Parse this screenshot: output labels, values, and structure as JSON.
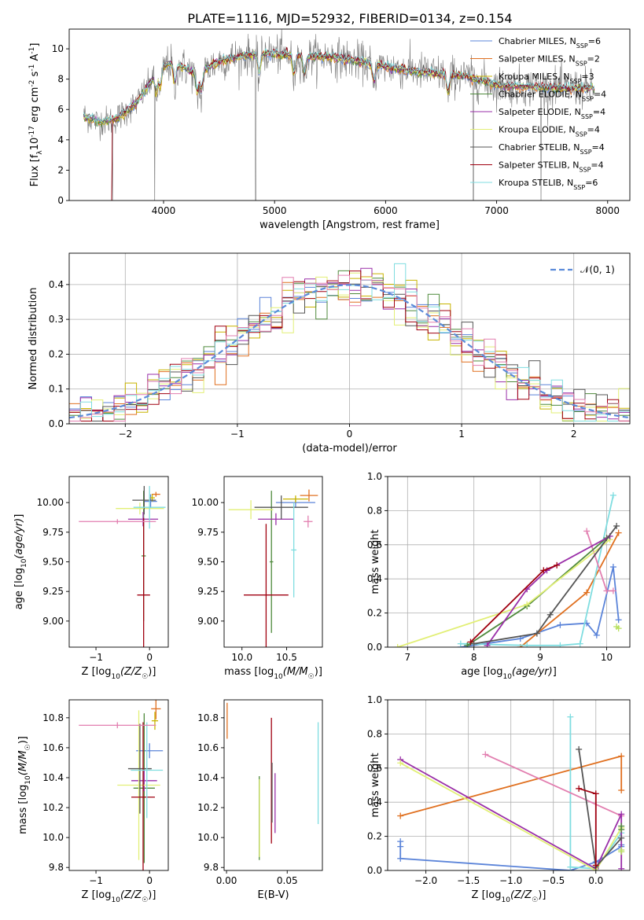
{
  "figure": {
    "title": "PLATE=1116, MJD=52932, FIBERID=0134, z=0.154"
  },
  "colors": {
    "Chabrier MILES": "#5b84d9",
    "Salpeter MILES": "#e07020",
    "Kroupa MILES": "#c8b400",
    "Chabrier ELODIE": "#4f8a3c",
    "Salpeter ELODIE": "#9a2fa8",
    "Kroupa ELODIE": "#e2ef76",
    "Chabrier STELIB": "#555555",
    "Salpeter STELIB": "#a00010",
    "Kroupa STELIB": "#7fdde0",
    "Pink": "#e27fb0",
    "Gaussian": "#5b8bd9",
    "Spectrum": "#7a7a7a",
    "Greenyellow": "#b8e060"
  },
  "chart_data": [
    {
      "id": "spectrum",
      "type": "line",
      "xlabel": "wavelength [Angstrom, rest frame]",
      "ylabel": "Flux [f_λ10^-17 erg cm^-2 s^-1 A^-1]",
      "xlim": [
        3150,
        8200
      ],
      "ylim": [
        0,
        11.3
      ],
      "xticks": [
        4000,
        5000,
        6000,
        7000,
        8000
      ],
      "yticks": [
        0,
        2,
        4,
        6,
        8,
        10
      ],
      "grid": false,
      "legend_position": "right",
      "legend": [
        {
          "label": "Chabrier MILES, N",
          "sub": "SSP",
          "suffix": "=6"
        },
        {
          "label": "Salpeter MILES, N",
          "sub": "SSP",
          "suffix": "=2"
        },
        {
          "label": "Kroupa MILES, N",
          "sub": "SSP",
          "suffix": "=3"
        },
        {
          "label": "Chabrier ELODIE, N",
          "sub": "SSP",
          "suffix": "=4"
        },
        {
          "label": "Salpeter ELODIE, N",
          "sub": "SSP",
          "suffix": "=4"
        },
        {
          "label": "Kroupa ELODIE, N",
          "sub": "SSP",
          "suffix": "=4"
        },
        {
          "label": "Chabrier STELIB, N",
          "sub": "SSP",
          "suffix": "=4"
        },
        {
          "label": "Salpeter STELIB, N",
          "sub": "SSP",
          "suffix": "=4"
        },
        {
          "label": "Kroupa STELIB, N",
          "sub": "SSP",
          "suffix": "=6"
        }
      ],
      "continuum": {
        "x": [
          3280,
          3400,
          3550,
          3650,
          3750,
          3850,
          3950,
          4050,
          4150,
          4300,
          4500,
          4700,
          4900,
          5100,
          5300,
          5500,
          5800,
          6100,
          6400,
          6700,
          7000,
          7300,
          7600,
          7900
        ],
        "y": [
          5.6,
          5.2,
          5.3,
          5.8,
          6.4,
          7.4,
          8.6,
          9.0,
          8.9,
          8.3,
          9.2,
          9.5,
          9.7,
          9.6,
          9.5,
          9.5,
          9.1,
          8.7,
          8.4,
          8.2,
          7.6,
          7.5,
          7.4,
          7.4
        ]
      },
      "absorption_lines": [
        3934,
        3969,
        4102,
        4304,
        4340,
        4861,
        5175,
        5270,
        5893,
        6563
      ],
      "spikes": [
        3540,
        3920,
        4830,
        6790,
        7400
      ]
    },
    {
      "id": "residuals",
      "type": "histogram",
      "xlabel": "(data-model)/error",
      "ylabel": "Normed distribution",
      "xlim": [
        -2.5,
        2.5
      ],
      "ylim": [
        0,
        0.49
      ],
      "xticks": [
        -2,
        -1,
        0,
        1,
        2
      ],
      "yticks": [
        0.0,
        0.1,
        0.2,
        0.3,
        0.4
      ],
      "grid": true,
      "legend_position": "upper right",
      "legend": [
        "𝒩(0, 1)"
      ],
      "bin_width": 0.1
    },
    {
      "id": "age-vs-Z",
      "type": "errorbar",
      "xlabel": "Z [log10(Z/Z☉)]",
      "ylabel": "age  [log10(age/yr)]",
      "xlim": [
        -1.5,
        0.35
      ],
      "ylim": [
        8.78,
        10.22
      ],
      "xticks": [
        -1,
        0
      ],
      "yticks": [
        9.0,
        9.25,
        9.5,
        9.75,
        10.0
      ],
      "points": [
        {
          "series": "Chabrier MILES",
          "x": 0.02,
          "xerr": 0.12,
          "y": 10.01,
          "yerr": 0.06
        },
        {
          "series": "Salpeter MILES",
          "x": 0.12,
          "xerr": 0.08,
          "y": 10.07,
          "yerr": 0.02
        },
        {
          "series": "Kroupa MILES",
          "x": 0.05,
          "xerr": 0.05,
          "y": 10.04,
          "yerr": 0.03
        },
        {
          "series": "Chabrier ELODIE",
          "x": -0.11,
          "xerr": 0.04,
          "y": 9.55,
          "yerr": 0.55
        },
        {
          "series": "Salpeter ELODIE",
          "x": -0.12,
          "xerr": 0.28,
          "y": 9.86,
          "yerr": 0.06
        },
        {
          "series": "Kroupa ELODIE",
          "x": -0.18,
          "xerr": 0.45,
          "y": 9.95,
          "yerr": 0.05
        },
        {
          "series": "Chabrier STELIB",
          "x": -0.1,
          "xerr": 0.22,
          "y": 10.02,
          "yerr": 0.12
        },
        {
          "series": "Salpeter STELIB",
          "x": -0.11,
          "xerr": 0.12,
          "y": 9.22,
          "yerr": 0.65
        },
        {
          "series": "Kroupa STELIB",
          "x": 0.0,
          "xerr": 0.3,
          "y": 9.96,
          "yerr": 0.18
        },
        {
          "series": "Pink",
          "x": -0.6,
          "xerr": 0.72,
          "y": 9.84,
          "yerr": 0.02
        }
      ]
    },
    {
      "id": "age-vs-mass",
      "type": "errorbar",
      "xlabel": "mass [log10(M/M☉)]",
      "ylabel": "",
      "xlim": [
        9.8,
        10.9
      ],
      "ylim": [
        8.78,
        10.22
      ],
      "xticks": [
        10.0,
        10.5
      ],
      "yticks": [
        9.0,
        9.25,
        9.5,
        9.75,
        10.0
      ],
      "points": [
        {
          "series": "Chabrier MILES",
          "x": 10.6,
          "xerr": 0.22,
          "y": 10.0,
          "yerr": 0.04
        },
        {
          "series": "Salpeter MILES",
          "x": 10.75,
          "xerr": 0.1,
          "y": 10.06,
          "yerr": 0.05
        },
        {
          "series": "Kroupa MILES",
          "x": 10.6,
          "xerr": 0.14,
          "y": 10.03,
          "yerr": 0.03
        },
        {
          "series": "Chabrier ELODIE",
          "x": 10.33,
          "xerr": 0.02,
          "y": 9.5,
          "yerr": 0.6
        },
        {
          "series": "Salpeter ELODIE",
          "x": 10.38,
          "xerr": 0.2,
          "y": 9.86,
          "yerr": 0.05
        },
        {
          "series": "Kroupa ELODIE",
          "x": 10.1,
          "xerr": 0.25,
          "y": 9.94,
          "yerr": 0.08
        },
        {
          "series": "Chabrier STELIB",
          "x": 10.44,
          "xerr": 0.3,
          "y": 9.96,
          "yerr": 0.1
        },
        {
          "series": "Salpeter STELIB",
          "x": 10.27,
          "xerr": 0.25,
          "y": 9.22,
          "yerr": 0.6
        },
        {
          "series": "Kroupa STELIB",
          "x": 10.58,
          "xerr": 0.03,
          "y": 9.6,
          "yerr": 0.4
        },
        {
          "series": "Pink",
          "x": 10.74,
          "xerr": 0.05,
          "y": 9.84,
          "yerr": 0.05
        }
      ]
    },
    {
      "id": "weight-vs-age",
      "type": "line",
      "xlabel": "age  [log10(age/yr)]",
      "ylabel": "mass weight",
      "xlim": [
        6.7,
        10.35
      ],
      "ylim": [
        0,
        1.0
      ],
      "xticks": [
        7,
        8,
        9,
        10
      ],
      "yticks": [
        0.0,
        0.2,
        0.4,
        0.6,
        0.8,
        1.0
      ],
      "grid": true,
      "series": [
        {
          "series": "Chabrier MILES",
          "x": [
            7.8,
            8.7,
            9.3,
            9.7,
            9.85,
            10.1,
            10.18
          ],
          "y": [
            0.0,
            0.05,
            0.13,
            0.14,
            0.07,
            0.47,
            0.16
          ]
        },
        {
          "series": "Salpeter MILES",
          "x": [
            8.7,
            9.7,
            10.18
          ],
          "y": [
            0.0,
            0.32,
            0.67
          ]
        },
        {
          "series": "Kroupa STELIB",
          "x": [
            7.8,
            8.8,
            9.3,
            9.6,
            10.1
          ],
          "y": [
            0.02,
            0.01,
            0.01,
            0.02,
            0.89
          ]
        },
        {
          "series": "Pink",
          "x": [
            9.7,
            10.0,
            10.1
          ],
          "y": [
            0.68,
            0.33,
            0.33
          ]
        },
        {
          "series": "Chabrier ELODIE",
          "x": [
            7.9,
            8.8,
            10.0
          ],
          "y": [
            0.01,
            0.24,
            0.64
          ]
        },
        {
          "series": "Kroupa ELODIE",
          "x": [
            6.85,
            8.8,
            10.05
          ],
          "y": [
            0.0,
            0.25,
            0.63
          ]
        },
        {
          "series": "Salpeter ELODIE",
          "x": [
            8.2,
            8.8,
            9.1,
            10.05
          ],
          "y": [
            0.01,
            0.34,
            0.45,
            0.65
          ]
        },
        {
          "series": "Salpeter STELIB",
          "x": [
            7.95,
            9.05,
            9.25
          ],
          "y": [
            0.03,
            0.45,
            0.48
          ]
        },
        {
          "series": "Chabrier STELIB",
          "x": [
            8.0,
            8.95,
            9.15,
            10.15
          ],
          "y": [
            0.02,
            0.08,
            0.19,
            0.71
          ]
        },
        {
          "series": "Greenyellow",
          "x": [
            10.15,
            10.18
          ],
          "y": [
            0.12,
            0.11
          ]
        }
      ]
    },
    {
      "id": "mass-vs-Z",
      "type": "errorbar",
      "xlabel": "Z [log10(Z/Z☉)]",
      "ylabel": "mass [log10(M/M☉)]",
      "xlim": [
        -1.5,
        0.35
      ],
      "ylim": [
        9.78,
        10.92
      ],
      "xticks": [
        -1,
        0
      ],
      "yticks": [
        9.8,
        10.0,
        10.2,
        10.4,
        10.6,
        10.8
      ],
      "points": [
        {
          "series": "Chabrier MILES",
          "x": 0.0,
          "xerr": 0.25,
          "y": 10.58,
          "yerr": 0.05
        },
        {
          "series": "Salpeter MILES",
          "x": 0.12,
          "xerr": 0.09,
          "y": 10.86,
          "yerr": 0.07
        },
        {
          "series": "Kroupa MILES",
          "x": 0.1,
          "xerr": 0.06,
          "y": 10.78,
          "yerr": 0.06
        },
        {
          "series": "Chabrier ELODIE",
          "x": -0.1,
          "xerr": 0.2,
          "y": 10.33,
          "yerr": 0.5
        },
        {
          "series": "Salpeter ELODIE",
          "x": -0.1,
          "xerr": 0.24,
          "y": 10.38,
          "yerr": 0.07
        },
        {
          "series": "Kroupa ELODIE",
          "x": -0.2,
          "xerr": 0.4,
          "y": 10.35,
          "yerr": 0.5
        },
        {
          "series": "Chabrier STELIB",
          "x": -0.18,
          "xerr": 0.22,
          "y": 10.46,
          "yerr": 0.3
        },
        {
          "series": "Salpeter STELIB",
          "x": -0.12,
          "xerr": 0.22,
          "y": 10.27,
          "yerr": 0.5
        },
        {
          "series": "Kroupa STELIB",
          "x": -0.05,
          "xerr": 0.3,
          "y": 10.45,
          "yerr": 0.32
        },
        {
          "series": "Pink",
          "x": -0.6,
          "xerr": 0.72,
          "y": 10.75,
          "yerr": 0.02
        }
      ]
    },
    {
      "id": "mass-vs-ebv",
      "type": "errorbar",
      "xlabel": "E(B-V)",
      "ylabel": "",
      "xlim": [
        -0.002,
        0.079
      ],
      "ylim": [
        9.78,
        10.92
      ],
      "xticks": [
        0.0,
        0.05
      ],
      "yticks": [
        9.8,
        10.0,
        10.2,
        10.4,
        10.6,
        10.8
      ],
      "points": [
        {
          "series": "Salpeter MILES",
          "x": 0.0005,
          "xerr": 0.0,
          "y": 10.78,
          "yerr": 0.12
        },
        {
          "series": "Chabrier ELODIE",
          "x": 0.027,
          "xerr": 0.0,
          "y": 10.13,
          "yerr": 0.28
        },
        {
          "series": "Kroupa ELODIE",
          "x": 0.0272,
          "xerr": 0.0,
          "y": 10.13,
          "yerr": 0.26
        },
        {
          "series": "Salpeter STELIB",
          "x": 0.037,
          "xerr": 0.0,
          "y": 10.38,
          "yerr": 0.42
        },
        {
          "series": "Chabrier STELIB",
          "x": 0.0375,
          "xerr": 0.0,
          "y": 10.3,
          "yerr": 0.2
        },
        {
          "series": "Salpeter ELODIE",
          "x": 0.04,
          "xerr": 0.0,
          "y": 10.23,
          "yerr": 0.2
        },
        {
          "series": "Kroupa STELIB",
          "x": 0.0755,
          "xerr": 0.0,
          "y": 10.43,
          "yerr": 0.34
        }
      ]
    },
    {
      "id": "weight-vs-Z",
      "type": "line",
      "xlabel": "Z [log10(Z/Z☉)]",
      "ylabel": "mass weight",
      "xlim": [
        -2.45,
        0.4
      ],
      "ylim": [
        0,
        1.0
      ],
      "xticks": [
        -2.0,
        -1.5,
        -1.0,
        -0.5,
        0.0
      ],
      "yticks": [
        0.0,
        0.2,
        0.4,
        0.6,
        0.8,
        1.0
      ],
      "grid": true,
      "series": [
        {
          "series": "Chabrier MILES",
          "x": [
            -2.3,
            -2.3,
            -2.3,
            -0.3,
            0.0,
            0.3,
            0.3
          ],
          "y": [
            0.17,
            0.14,
            0.07,
            0.0,
            0.05,
            0.14,
            0.15
          ]
        },
        {
          "series": "Salpeter MILES",
          "x": [
            -2.3,
            0.3,
            0.3
          ],
          "y": [
            0.32,
            0.67,
            0.47
          ]
        },
        {
          "series": "Kroupa STELIB",
          "x": [
            -0.3,
            -0.3,
            0.0,
            0.3
          ],
          "y": [
            0.9,
            0.02,
            0.01,
            0.22
          ]
        },
        {
          "series": "Pink",
          "x": [
            -1.3,
            0.3
          ],
          "y": [
            0.68,
            0.32
          ]
        },
        {
          "series": "Salpeter ELODIE",
          "x": [
            -2.3,
            0.0,
            0.3,
            0.3
          ],
          "y": [
            0.65,
            0.01,
            0.33,
            0.01
          ]
        },
        {
          "series": "Kroupa ELODIE",
          "x": [
            -2.3,
            0.0,
            0.3
          ],
          "y": [
            0.63,
            0.0,
            0.25
          ]
        },
        {
          "series": "Chabrier STELIB",
          "x": [
            -0.2,
            0.0,
            0.3
          ],
          "y": [
            0.71,
            0.02,
            0.19
          ]
        },
        {
          "series": "Salpeter STELIB",
          "x": [
            -0.2,
            0.0,
            0.0
          ],
          "y": [
            0.48,
            0.45,
            0.03
          ]
        },
        {
          "series": "Chabrier ELODIE",
          "x": [
            0.3,
            0.3
          ],
          "y": [
            0.24,
            0.26
          ]
        },
        {
          "series": "Greenyellow",
          "x": [
            0.3,
            0.3
          ],
          "y": [
            0.12,
            0.11
          ]
        }
      ]
    }
  ]
}
